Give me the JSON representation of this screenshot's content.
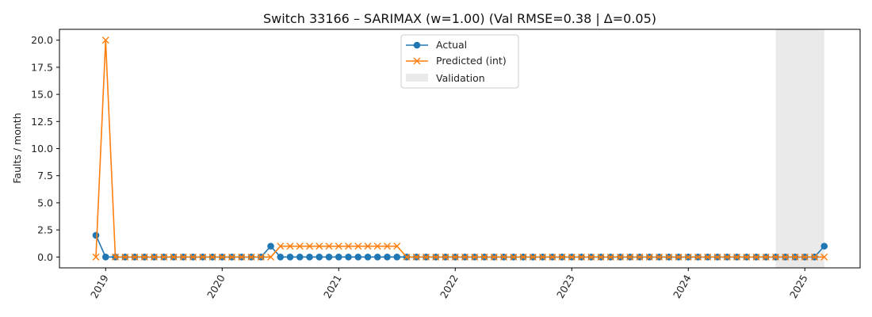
{
  "chart_data": {
    "type": "line",
    "title": "Switch 33166 – SARIMAX (w=1.00) (Val RMSE=0.38 | Δ=0.05)",
    "xlabel": "",
    "ylabel": "Faults / month",
    "x_start": "2018-12",
    "x": [
      "2018-12",
      "2019-01",
      "2019-02",
      "2019-03",
      "2019-04",
      "2019-05",
      "2019-06",
      "2019-07",
      "2019-08",
      "2019-09",
      "2019-10",
      "2019-11",
      "2019-12",
      "2020-01",
      "2020-02",
      "2020-03",
      "2020-04",
      "2020-05",
      "2020-06",
      "2020-07",
      "2020-08",
      "2020-09",
      "2020-10",
      "2020-11",
      "2020-12",
      "2021-01",
      "2021-02",
      "2021-03",
      "2021-04",
      "2021-05",
      "2021-06",
      "2021-07",
      "2021-08",
      "2021-09",
      "2021-10",
      "2021-11",
      "2021-12",
      "2022-01",
      "2022-02",
      "2022-03",
      "2022-04",
      "2022-05",
      "2022-06",
      "2022-07",
      "2022-08",
      "2022-09",
      "2022-10",
      "2022-11",
      "2022-12",
      "2023-01",
      "2023-02",
      "2023-03",
      "2023-04",
      "2023-05",
      "2023-06",
      "2023-07",
      "2023-08",
      "2023-09",
      "2023-10",
      "2023-11",
      "2023-12",
      "2024-01",
      "2024-02",
      "2024-03",
      "2024-04",
      "2024-05",
      "2024-06",
      "2024-07",
      "2024-08",
      "2024-09",
      "2024-10",
      "2024-11",
      "2024-12",
      "2025-01",
      "2025-02",
      "2025-03"
    ],
    "series": [
      {
        "name": "Actual",
        "color": "#1f77b4",
        "marker": "circle",
        "values": [
          2,
          0,
          0,
          0,
          0,
          0,
          0,
          0,
          0,
          0,
          0,
          0,
          0,
          0,
          0,
          0,
          0,
          0,
          1,
          0,
          0,
          0,
          0,
          0,
          0,
          0,
          0,
          0,
          0,
          0,
          0,
          0,
          0,
          0,
          0,
          0,
          0,
          0,
          0,
          0,
          0,
          0,
          0,
          0,
          0,
          0,
          0,
          0,
          0,
          0,
          0,
          0,
          0,
          0,
          0,
          0,
          0,
          0,
          0,
          0,
          0,
          0,
          0,
          0,
          0,
          0,
          0,
          0,
          0,
          0,
          0,
          0,
          0,
          0,
          0,
          1
        ]
      },
      {
        "name": "Predicted (int)",
        "color": "#ff7f0e",
        "marker": "x",
        "values": [
          0,
          20,
          0,
          0,
          0,
          0,
          0,
          0,
          0,
          0,
          0,
          0,
          0,
          0,
          0,
          0,
          0,
          0,
          0,
          1,
          1,
          1,
          1,
          1,
          1,
          1,
          1,
          1,
          1,
          1,
          1,
          1,
          0,
          0,
          0,
          0,
          0,
          0,
          0,
          0,
          0,
          0,
          0,
          0,
          0,
          0,
          0,
          0,
          0,
          0,
          0,
          0,
          0,
          0,
          0,
          0,
          0,
          0,
          0,
          0,
          0,
          0,
          0,
          0,
          0,
          0,
          0,
          0,
          0,
          0,
          0,
          0,
          0,
          0,
          0,
          0
        ]
      }
    ],
    "validation": {
      "label": "Validation",
      "start": "2024-10",
      "end": "2025-03",
      "color": "#d9d9d9"
    },
    "ylim": [
      -1,
      21
    ],
    "yticks": [
      "0.0",
      "2.5",
      "5.0",
      "7.5",
      "10.0",
      "12.5",
      "15.0",
      "17.5",
      "20.0"
    ],
    "xticks": [
      "2019",
      "2020",
      "2021",
      "2022",
      "2023",
      "2024",
      "2025"
    ],
    "grid": false,
    "legend": "top-center"
  }
}
